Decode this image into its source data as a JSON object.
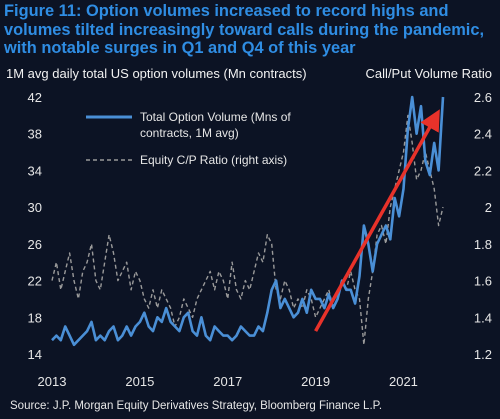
{
  "title": "Figure 11: Option volumes increased to record highs and volumes tilted increasingly toward calls during the pandemic, with notable surges in Q1 and Q4 of this year",
  "source": "Source: J.P. Morgan Equity Derivatives Strategy, Bloomberg Finance L.P.",
  "colors": {
    "background": "#0c1324",
    "title": "#2f8de3",
    "volume": "#4a8fd6",
    "ratio": "#9a9a9a",
    "arrow": "#e8322a"
  },
  "chart_data": {
    "type": "line",
    "ylabel_left": "1M avg daily total US option volumes (Mn contracts)",
    "ylabel_right": "Call/Put Volume Ratio",
    "xlim": [
      2013,
      2021.9
    ],
    "ylim_left": [
      14,
      42
    ],
    "ylim_right": [
      1.2,
      2.6
    ],
    "x_ticks": [
      "2013",
      "2015",
      "2017",
      "2019",
      "2021"
    ],
    "y_ticks_left": [
      "14",
      "18",
      "22",
      "26",
      "30",
      "34",
      "38",
      "42"
    ],
    "y_ticks_right": [
      "1.2",
      "1.4",
      "1.6",
      "1.8",
      "2",
      "2.2",
      "2.4",
      "2.6"
    ],
    "grid": false,
    "legend": "top-left",
    "series": [
      {
        "name": "Total Option Volume (Mns of contracts, 1M avg)",
        "axis": "left",
        "x": [
          2013.0,
          2013.1,
          2013.2,
          2013.3,
          2013.4,
          2013.5,
          2013.6,
          2013.7,
          2013.8,
          2013.9,
          2014.0,
          2014.1,
          2014.2,
          2014.3,
          2014.4,
          2014.5,
          2014.6,
          2014.7,
          2014.8,
          2014.9,
          2015.0,
          2015.1,
          2015.2,
          2015.3,
          2015.4,
          2015.5,
          2015.6,
          2015.7,
          2015.8,
          2015.9,
          2016.0,
          2016.1,
          2016.2,
          2016.3,
          2016.4,
          2016.5,
          2016.6,
          2016.7,
          2016.8,
          2016.9,
          2017.0,
          2017.1,
          2017.2,
          2017.3,
          2017.4,
          2017.5,
          2017.6,
          2017.7,
          2017.8,
          2017.9,
          2018.0,
          2018.1,
          2018.2,
          2018.3,
          2018.4,
          2018.5,
          2018.6,
          2018.7,
          2018.8,
          2018.9,
          2019.0,
          2019.1,
          2019.2,
          2019.3,
          2019.4,
          2019.5,
          2019.6,
          2019.7,
          2019.8,
          2019.9,
          2020.0,
          2020.1,
          2020.2,
          2020.3,
          2020.4,
          2020.5,
          2020.6,
          2020.7,
          2020.8,
          2020.9,
          2021.0,
          2021.1,
          2021.2,
          2021.3,
          2021.4,
          2021.5,
          2021.6,
          2021.7,
          2021.8,
          2021.9
        ],
        "values": [
          15.5,
          16,
          15.5,
          17,
          16,
          15,
          15.5,
          16,
          16.5,
          17.5,
          15.5,
          16,
          15.5,
          16.5,
          17,
          15.5,
          16,
          17,
          16,
          17,
          17.5,
          18.5,
          17,
          16.5,
          18,
          17.5,
          19,
          17.5,
          17,
          16.5,
          18,
          18.5,
          16.5,
          16,
          18,
          16,
          15.5,
          17,
          16.5,
          16,
          16,
          15.5,
          16,
          17,
          16.5,
          16,
          16,
          17,
          16.5,
          18.5,
          21,
          22,
          19,
          20,
          19,
          18,
          18.5,
          20,
          18.5,
          21,
          20,
          20,
          19,
          20.5,
          19,
          20,
          22,
          21,
          21,
          19.5,
          22.5,
          28,
          26,
          23,
          26,
          27,
          28,
          26.5,
          31,
          29,
          32,
          38.5,
          42,
          38,
          41,
          35,
          33.5,
          37,
          34,
          42
        ]
      },
      {
        "name": "Equity C/P Ratio (right axis)",
        "axis": "right",
        "x": [
          2013.0,
          2013.1,
          2013.2,
          2013.3,
          2013.4,
          2013.5,
          2013.6,
          2013.7,
          2013.8,
          2013.9,
          2014.0,
          2014.1,
          2014.2,
          2014.3,
          2014.4,
          2014.5,
          2014.6,
          2014.7,
          2014.8,
          2014.9,
          2015.0,
          2015.1,
          2015.2,
          2015.3,
          2015.4,
          2015.5,
          2015.6,
          2015.7,
          2015.8,
          2015.9,
          2016.0,
          2016.1,
          2016.2,
          2016.3,
          2016.4,
          2016.5,
          2016.6,
          2016.7,
          2016.8,
          2016.9,
          2017.0,
          2017.1,
          2017.2,
          2017.3,
          2017.4,
          2017.5,
          2017.6,
          2017.7,
          2017.8,
          2017.9,
          2018.0,
          2018.1,
          2018.2,
          2018.3,
          2018.4,
          2018.5,
          2018.6,
          2018.7,
          2018.8,
          2018.9,
          2019.0,
          2019.1,
          2019.2,
          2019.3,
          2019.4,
          2019.5,
          2019.6,
          2019.7,
          2019.8,
          2019.9,
          2020.0,
          2020.1,
          2020.2,
          2020.3,
          2020.4,
          2020.5,
          2020.6,
          2020.7,
          2020.8,
          2020.9,
          2021.0,
          2021.1,
          2021.2,
          2021.3,
          2021.4,
          2021.5,
          2021.6,
          2021.7,
          2021.8,
          2021.9
        ],
        "values": [
          1.6,
          1.7,
          1.55,
          1.65,
          1.75,
          1.6,
          1.5,
          1.65,
          1.7,
          1.8,
          1.6,
          1.55,
          1.7,
          1.85,
          1.75,
          1.6,
          1.65,
          1.7,
          1.55,
          1.65,
          1.6,
          1.5,
          1.45,
          1.55,
          1.45,
          1.55,
          1.5,
          1.45,
          1.35,
          1.4,
          1.5,
          1.45,
          1.4,
          1.5,
          1.55,
          1.6,
          1.65,
          1.55,
          1.65,
          1.6,
          1.5,
          1.7,
          1.55,
          1.5,
          1.6,
          1.55,
          1.65,
          1.75,
          1.7,
          1.85,
          1.8,
          1.55,
          1.5,
          1.6,
          1.55,
          1.45,
          1.5,
          1.45,
          1.55,
          1.5,
          1.4,
          1.45,
          1.5,
          1.55,
          1.45,
          1.5,
          1.6,
          1.55,
          1.65,
          1.55,
          1.5,
          1.25,
          1.5,
          1.65,
          1.85,
          1.9,
          1.8,
          2.0,
          2.1,
          2.2,
          2.3,
          2.5,
          2.35,
          2.15,
          2.2,
          2.3,
          2.2,
          2.1,
          1.9,
          2.0
        ]
      }
    ],
    "annotations": [
      {
        "type": "arrow",
        "color": "red",
        "from": {
          "x": 2019.0,
          "y_left": 16.5
        },
        "to": {
          "x": 2021.75,
          "y_left": 40
        }
      }
    ]
  }
}
